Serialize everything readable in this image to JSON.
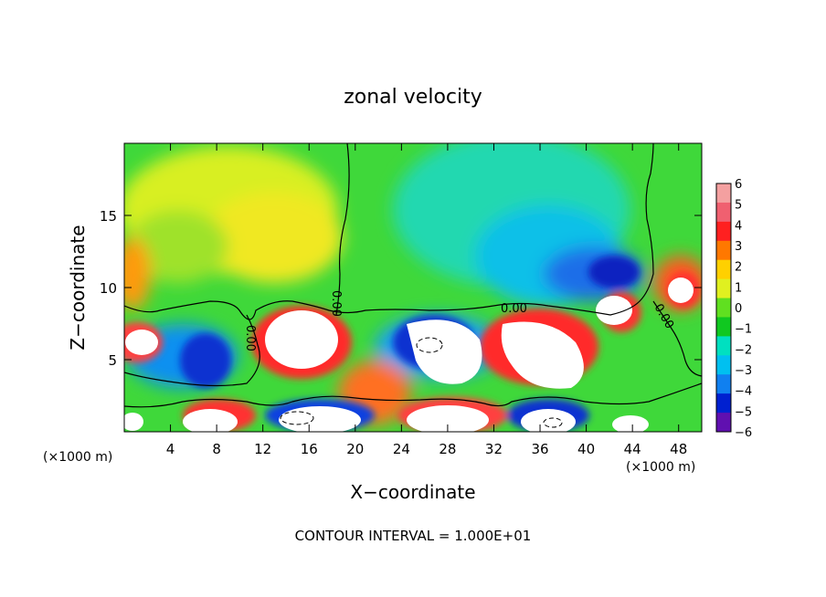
{
  "chart_data": {
    "type": "heatmap",
    "title": "zonal velocity",
    "xlabel": "X−coordinate",
    "ylabel": "Z−coordinate",
    "x_unit_left": "(×1000 m)",
    "x_unit_right": "(×1000 m)",
    "footer": "CONTOUR INTERVAL = 1.000E+01",
    "xlim": [
      0,
      50
    ],
    "ylim": [
      0,
      20
    ],
    "x_ticks": [
      4,
      8,
      12,
      16,
      20,
      24,
      28,
      32,
      36,
      40,
      44,
      48
    ],
    "y_ticks": [
      5,
      10,
      15
    ],
    "colorbar": {
      "levels": [
        6,
        5,
        4,
        3,
        2,
        1,
        0,
        -1,
        -2,
        -3,
        -4,
        -5,
        -6
      ],
      "labels": [
        "6",
        "5",
        "4",
        "3",
        "2",
        "1",
        "0",
        "−1",
        "−2",
        "−3",
        "−4",
        "−5",
        "−6"
      ],
      "colors": [
        "#f4a0a0",
        "#f06070",
        "#ff2020",
        "#ff7800",
        "#ffd000",
        "#e0f020",
        "#60e020",
        "#10c820",
        "#00e0c0",
        "#00c0f0",
        "#1080f0",
        "#0020d0",
        "#6010b0"
      ]
    },
    "contour_labels": [
      {
        "text": "0.00",
        "x": 10.6,
        "z": 8.1
      },
      {
        "text": "0.00",
        "x": 18.6,
        "z": 9.0
      },
      {
        "text": "0.00",
        "x": 34.5,
        "z": 8.5
      },
      {
        "text": "0.00",
        "x": 46.5,
        "z": 8.0
      }
    ]
  }
}
